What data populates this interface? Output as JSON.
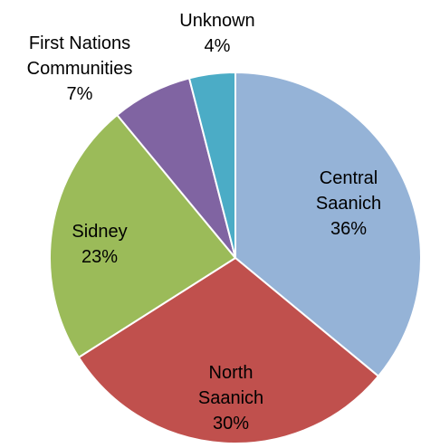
{
  "chart_data": {
    "type": "pie",
    "categories": [
      "Central Saanich",
      "North Saanich",
      "Sidney",
      "First Nations Communities",
      "Unknown"
    ],
    "values": [
      36,
      30,
      23,
      7,
      4
    ],
    "value_labels": [
      "36%",
      "30%",
      "23%",
      "7%",
      "4%"
    ],
    "colors": [
      "#95b3d7",
      "#c0504d",
      "#9bbb59",
      "#8064a2",
      "#4bacc6"
    ]
  }
}
